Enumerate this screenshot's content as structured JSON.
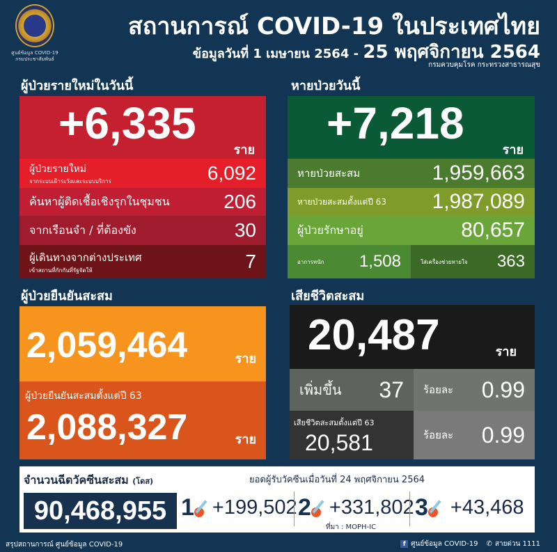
{
  "header": {
    "logo_text": "ศูนย์ข้อมูล COVID-19 กรมประชาสัมพันธ์",
    "title": "สถานการณ์ COVID-19 ในประเทศไทย",
    "subtitle_prefix": "ข้อมูลวันที่ 1 เมษายน 2564 -",
    "subtitle_date": "25 พฤศจิกายน 2564",
    "department": "กรมควบคุมโรค กระทรวงสาธารณสุข"
  },
  "new_cases": {
    "heading": "ผู้ป่วยรายใหม่ในวันนี้",
    "total": "+6,335",
    "unit": "ราย",
    "rows": [
      {
        "label": "ผู้ป่วยรายใหม่",
        "sublabel": "จากระบบเฝ้าระวังและระบบบริการ",
        "value": "6,092"
      },
      {
        "label": "ค้นหาผู้ติดเชื้อเชิงรุกในชุมชน",
        "value": "206"
      },
      {
        "label": "จากเรือนจำ / ที่ต้องขัง",
        "value": "30"
      },
      {
        "label": "ผู้เดินทางจากต่างประเทศ",
        "sublabel": "เข้าสถานที่กักกันที่รัฐจัดให้",
        "value": "7"
      }
    ]
  },
  "recovered": {
    "heading": "หายป่วยวันนี้",
    "total": "+7,218",
    "unit": "ราย",
    "rows": [
      {
        "label": "หายป่วยสะสม",
        "value": "1,959,663"
      },
      {
        "label": "หายป่วยสะสมตั้งแต่ปี 63",
        "value": "1,987,089"
      },
      {
        "label": "ผู้ป่วยรักษาอยู่",
        "value": "80,657"
      }
    ],
    "severe": {
      "label": "อาการหนัก",
      "value": "1,508"
    },
    "ventilator": {
      "label": "ใส่เครื่องช่วยหายใจ",
      "value": "363"
    }
  },
  "confirmed": {
    "heading": "ผู้ป่วยยืนยันสะสม",
    "total": "2,059,464",
    "unit": "ราย",
    "since63_label": "ผู้ป่วยยืนยันสะสมตั้งแต่ปี 63",
    "since63_value": "2,088,327"
  },
  "deaths": {
    "heading": "เสียชีวิตสะสม",
    "total": "20,487",
    "unit": "ราย",
    "increase_label": "เพิ่มขึ้น",
    "increase": "37",
    "pct_label": "ร้อยละ",
    "pct": "0.99",
    "since63_label": "เสียชีวิตสะสมตั้งแต่ปี 63",
    "since63_value": "20,581",
    "pct2": "0.99"
  },
  "vaccine": {
    "heading": "จำนวนฉีดวัคซีนสะสม",
    "heading_unit": "(โดส)",
    "total": "90,468,955",
    "date_label": "ยอดผู้รับวัคซีนเมื่อวันที่ 24 พฤศจิกายน 2564",
    "doses": [
      {
        "dose": "1",
        "value": "+199,502"
      },
      {
        "dose": "2",
        "value": "+331,802"
      },
      {
        "dose": "3",
        "value": "+43,468"
      }
    ],
    "source": "ที่มา : MOPH-IC"
  },
  "footer": {
    "left": "สรุปสถานการณ์ ศูนย์ข้อมูล COVID-19",
    "facebook": "ศูนย์ข้อมูล COVID-19",
    "hotline": "สายด่วน 1111"
  },
  "colors": {
    "background": "#113552",
    "red": "#c4202f",
    "green": "#0a5a35",
    "orange": "#f7941d",
    "black": "#1a1a1a"
  }
}
